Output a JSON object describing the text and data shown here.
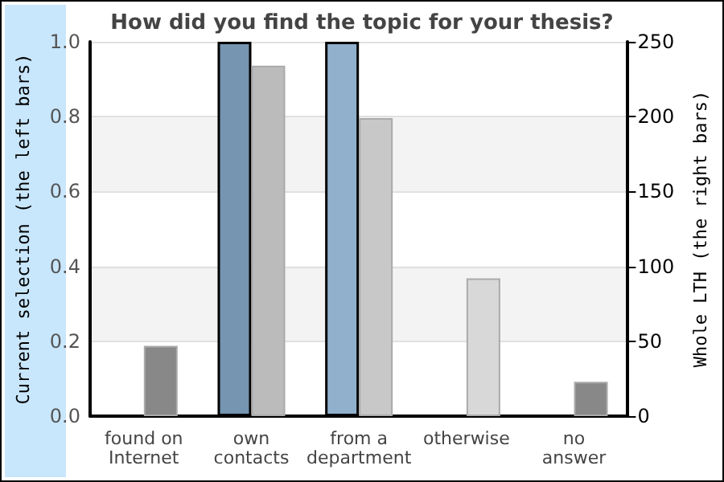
{
  "chart_data": {
    "type": "bar",
    "title": "How did you find the topic for your thesis?",
    "ylabel": "Current selection (the left bars)",
    "y2label": "Whole LTH (the right bars)",
    "categories": [
      "found on\nInternet",
      "own\ncontacts",
      "from a\ndepartment",
      "otherwise",
      "no\nanswer"
    ],
    "series": [
      {
        "colors": [
          null,
          "#7595b0",
          "#90b0cc",
          null,
          null
        ],
        "values": [
          null,
          1.0,
          1.0,
          null,
          null
        ]
      },
      {
        "axis": "y2",
        "colors": [
          "#888888",
          "#bbbbbb",
          "#c8c8c8",
          "#d8d8d8",
          "#888888"
        ],
        "values": [
          47,
          234,
          199,
          92,
          23
        ]
      }
    ],
    "ylim": [
      0,
      1
    ],
    "yticks": [
      {
        "value": 0,
        "label": "0.0"
      },
      {
        "value": 0.2,
        "label": "0.2"
      },
      {
        "value": 0.4,
        "label": "0.4"
      },
      {
        "value": 0.6,
        "label": "0.6"
      },
      {
        "value": 0.8,
        "label": "0.8"
      },
      {
        "value": 1,
        "label": "1.0"
      }
    ],
    "y2lim": [
      0,
      250
    ],
    "y2ticks": [
      0,
      50,
      100,
      150,
      200,
      250
    ],
    "grid": true
  }
}
